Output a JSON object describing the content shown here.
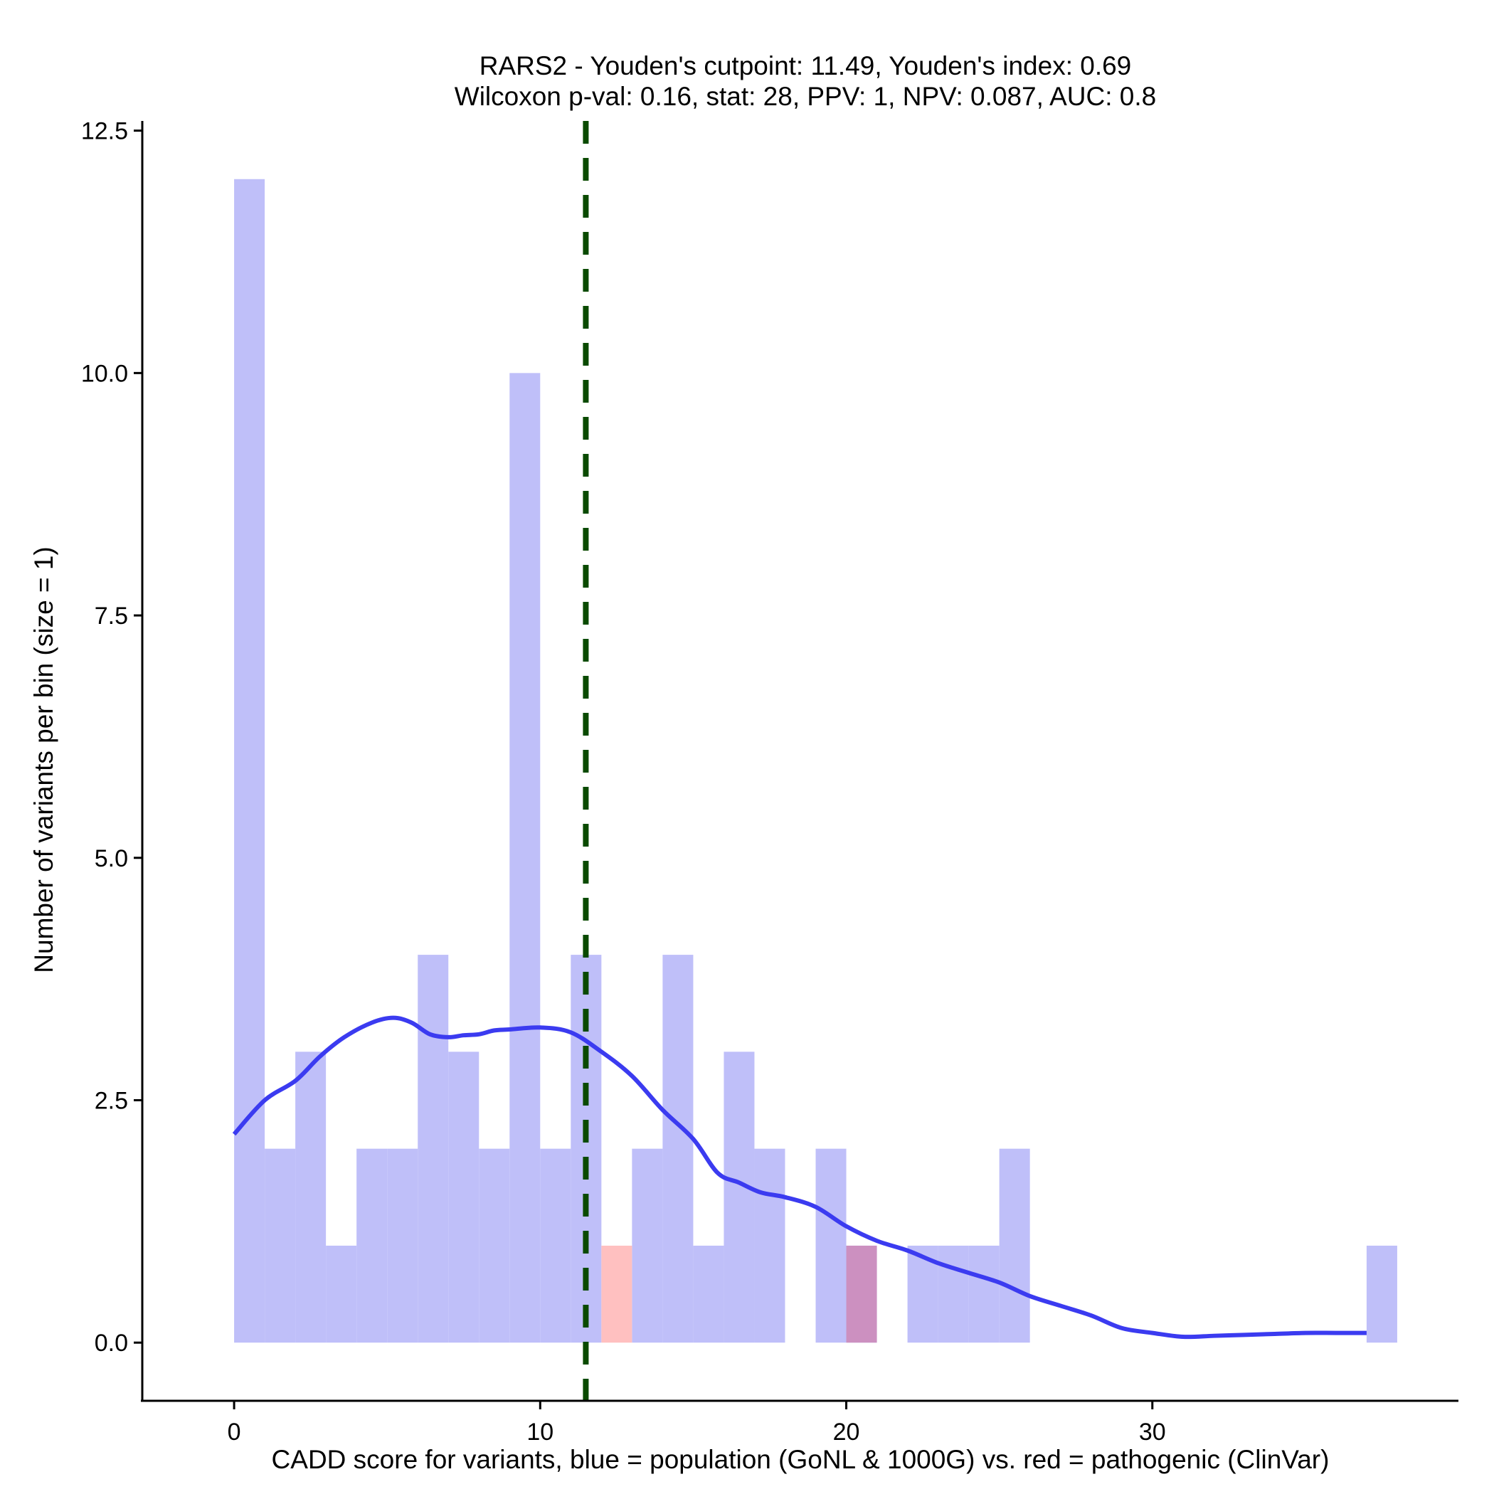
{
  "chart_data": {
    "type": "histogram",
    "title_line1": "RARS2 - Youden's cutpoint: 11.49, Youden's index: 0.69",
    "title_line2": "Wilcoxon p-val: 0.16, stat: 28, PPV: 1, NPV: 0.087, AUC: 0.8",
    "xlabel": "CADD score for variants, blue = population (GoNL & 1000G) vs. red = pathogenic (ClinVar)",
    "ylabel": "Number of variants per bin (size = 1)",
    "xlim": [
      -3,
      40
    ],
    "ylim": [
      -0.6,
      12.6
    ],
    "xticks": [
      0,
      10,
      20,
      30
    ],
    "xtick_labels": [
      "0",
      "10",
      "20",
      "30"
    ],
    "yticks": [
      0,
      2.5,
      5,
      7.5,
      10,
      12.5
    ],
    "ytick_labels": [
      "0.0",
      "2.5",
      "5.0",
      "7.5",
      "10.0",
      "12.5"
    ],
    "bin_width": 1,
    "cutpoint": 11.49,
    "colors": {
      "population": "#bfbff9",
      "pathogenic": "#ffc0c0",
      "overlap": "#cc90c0",
      "density": "#3b3bf0",
      "cutpoint": "#0a4a00"
    },
    "series": [
      {
        "name": "population",
        "bin_starts": [
          0,
          1,
          2,
          3,
          4,
          5,
          6,
          7,
          8,
          9,
          10,
          11,
          13,
          14,
          15,
          16,
          17,
          19,
          20,
          22,
          23,
          24,
          25,
          37
        ],
        "counts": [
          12,
          2,
          3,
          1,
          2,
          2,
          4,
          3,
          2,
          10,
          2,
          4,
          2,
          4,
          1,
          3,
          2,
          2,
          1,
          1,
          1,
          1,
          2,
          1
        ]
      },
      {
        "name": "pathogenic",
        "bin_starts": [
          12,
          20
        ],
        "counts": [
          1,
          1
        ]
      }
    ],
    "density": {
      "x": [
        0,
        1,
        2,
        2.8,
        3.6,
        4.5,
        5.2,
        5.8,
        6.4,
        7.0,
        7.5,
        8.0,
        8.5,
        9.0,
        10.0,
        11.0,
        12.0,
        13.0,
        14.0,
        15.0,
        15.8,
        16.5,
        17.2,
        18.0,
        19.0,
        20.0,
        21.0,
        22.0,
        23.0,
        24.0,
        25.0,
        26.0,
        27.0,
        28.0,
        29.0,
        30.0,
        31.0,
        32.0,
        33.0,
        34.0,
        35.0,
        36.0,
        37.0
      ],
      "y": [
        2.15,
        2.5,
        2.7,
        2.95,
        3.15,
        3.3,
        3.35,
        3.3,
        3.18,
        3.15,
        3.17,
        3.18,
        3.22,
        3.23,
        3.25,
        3.2,
        3.0,
        2.75,
        2.4,
        2.1,
        1.75,
        1.65,
        1.55,
        1.5,
        1.4,
        1.2,
        1.05,
        0.95,
        0.82,
        0.72,
        0.62,
        0.48,
        0.38,
        0.28,
        0.15,
        0.1,
        0.06,
        0.07,
        0.08,
        0.09,
        0.1,
        0.1,
        0.1
      ]
    }
  }
}
